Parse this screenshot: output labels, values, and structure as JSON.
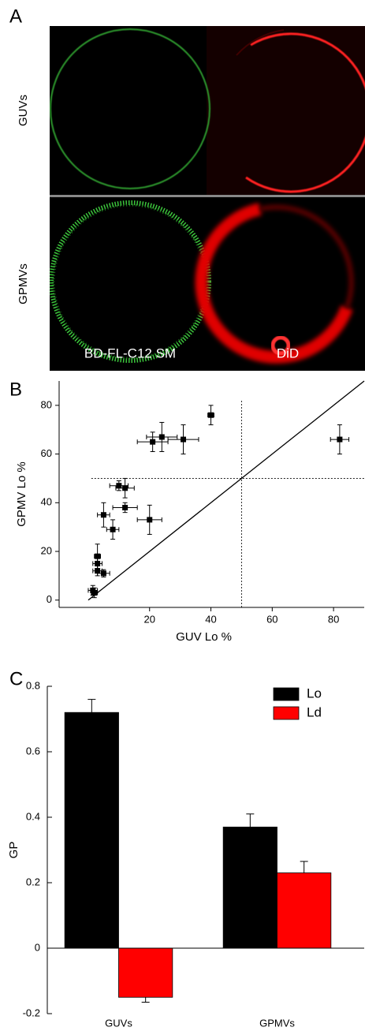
{
  "panel_a": {
    "label": "A",
    "rows": [
      "GUVs",
      "GPMVs"
    ],
    "columns": [
      "BD-FL-C12 SM",
      "DiD"
    ]
  },
  "chart_data": [
    {
      "type": "scatter",
      "panel_label": "B",
      "x_label": "GUV Lo %",
      "y_label": "GPMV Lo %",
      "x": [
        1.5,
        2,
        3,
        3,
        3,
        5,
        5,
        8,
        12,
        10,
        12,
        20,
        21,
        24,
        31,
        40,
        82
      ],
      "values": [
        4,
        3,
        18,
        15,
        12,
        11,
        35,
        29,
        38,
        47,
        46,
        33,
        65,
        67,
        66,
        76,
        66
      ],
      "xerr": [
        1.5,
        1,
        1,
        1.5,
        1.5,
        2,
        2,
        2,
        4,
        3,
        3,
        4,
        5,
        5,
        5,
        1,
        3
      ],
      "yerr": [
        2,
        2,
        5,
        3,
        2,
        1.5,
        5,
        4,
        2,
        2,
        4,
        6,
        4,
        6,
        6,
        4,
        6
      ],
      "color": "#000000",
      "xlim": [
        -9.5,
        90
      ],
      "ylim": [
        -3,
        90
      ],
      "xticks": [
        20,
        40,
        60,
        80
      ],
      "yticks": [
        0,
        20,
        40,
        60,
        80
      ],
      "vline": 50,
      "hline": 50,
      "diagonal": true
    },
    {
      "type": "bar",
      "panel_label": "C",
      "y_label": "GP",
      "categories": [
        "GUVs",
        "GPMVs"
      ],
      "series": [
        {
          "name": "Lo",
          "color": "#000000",
          "values": [
            0.72,
            0.37
          ],
          "errors": [
            0.04,
            0.04
          ]
        },
        {
          "name": "Ld",
          "color": "#ff0000",
          "values": [
            -0.15,
            0.23
          ],
          "errors": [
            0.015,
            0.035
          ]
        }
      ],
      "ylim": [
        -0.2,
        0.8
      ],
      "yticks": [
        -0.2,
        0,
        0.2,
        0.4,
        0.6,
        0.8
      ],
      "legend": "top-right"
    }
  ]
}
